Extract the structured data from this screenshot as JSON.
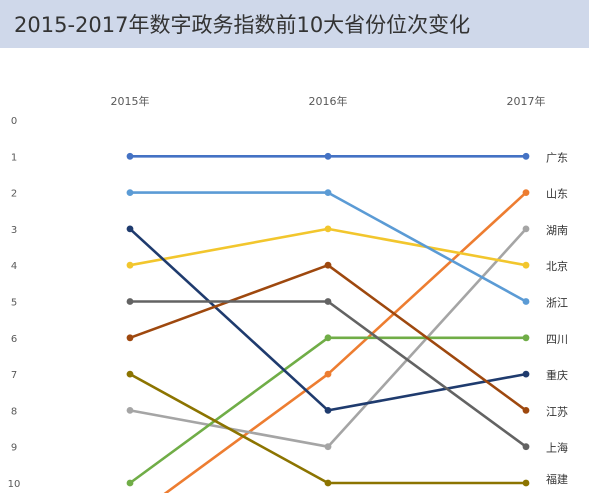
{
  "title": "2015-2017年数字政务指数前10大省份位次变化",
  "chart_data": {
    "type": "line",
    "x": [
      "2015年",
      "2016年",
      "2017年"
    ],
    "ylim": [
      0,
      10
    ],
    "y_inverted": true,
    "y_ticks": [
      "0",
      "1",
      "2",
      "3",
      "4",
      "5",
      "6",
      "7",
      "8",
      "9",
      "10"
    ],
    "grid": false,
    "legend": "right end labels",
    "series": [
      {
        "name": "广东",
        "color": "#4472c4",
        "values": [
          1,
          1,
          1
        ]
      },
      {
        "name": "山东",
        "color": "#ed7d31",
        "values": [
          11,
          7,
          2
        ]
      },
      {
        "name": "湖南",
        "color": "#a5a5a5",
        "values": [
          8,
          9,
          3
        ]
      },
      {
        "name": "北京",
        "color": "#f2c62d",
        "values": [
          4,
          3,
          4
        ]
      },
      {
        "name": "浙江",
        "color": "#5b9bd5",
        "values": [
          2,
          2,
          5
        ]
      },
      {
        "name": "四川",
        "color": "#70ad47",
        "values": [
          10,
          6,
          6
        ]
      },
      {
        "name": "重庆",
        "color": "#1f3b6e",
        "values": [
          3,
          8,
          7
        ]
      },
      {
        "name": "江苏",
        "color": "#9e480e",
        "values": [
          6,
          4,
          8
        ]
      },
      {
        "name": "上海",
        "color": "#636363",
        "values": [
          5,
          5,
          9
        ]
      },
      {
        "name": "福建",
        "color": "#8c7400",
        "values": [
          7,
          10,
          10
        ]
      }
    ]
  }
}
